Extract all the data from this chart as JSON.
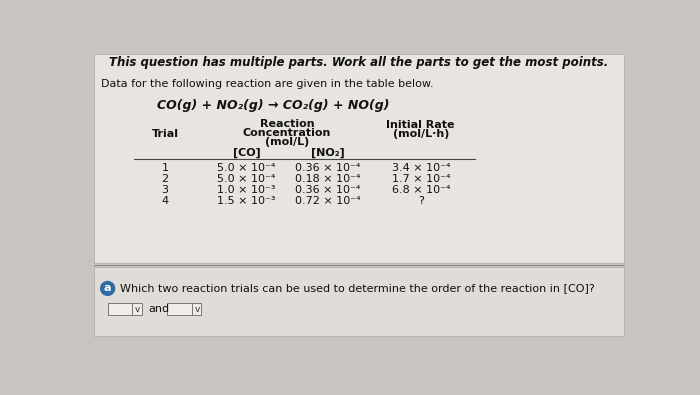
{
  "bg_color": "#c8c4c0",
  "panel_color": "#e8e5e1",
  "header_bold": "This question has multiple parts. Work all the parts to get the most points.",
  "intro_text": "Data for the following reaction are given in the table below.",
  "reaction": "CO(g) + NO₂(g) → CO₂(g) + NO(g)",
  "col_header_trial": "Trial",
  "col_header_reaction": "Reaction",
  "col_header_concentration": "Concentration",
  "col_header_mol": "(mol/L)",
  "col_header_co": "[CO]",
  "col_header_no2": "[NO₂]",
  "col_header_rate": "Initial Rate",
  "col_header_rate2": "(mol/L·h)",
  "trial_nums": [
    "1",
    "2",
    "3",
    "4"
  ],
  "co_vals": [
    "5.0 × 10⁻⁴",
    "5.0 × 10⁻⁴",
    "1.0 × 10⁻³",
    "1.5 × 10⁻³"
  ],
  "no2_vals": [
    "0.36 × 10⁻⁴",
    "0.18 × 10⁻⁴",
    "0.36 × 10⁻⁴",
    "0.72 × 10⁻⁴"
  ],
  "rate_vals": [
    "3.4 × 10⁻⁴",
    "1.7 × 10⁻⁴",
    "6.8 × 10⁻⁴",
    "?"
  ],
  "question_label": "a",
  "question_text": "Which two reaction trials can be used to determine the order of the reaction in [CO]?",
  "dropdown_arrow": "v",
  "and_text": "and",
  "label_circle_color": "#2e6da4",
  "label_text_color": "#ffffff",
  "text_color": "#111111",
  "font_size": 8.0,
  "font_size_reaction": 9.0,
  "font_size_header": 8.5
}
